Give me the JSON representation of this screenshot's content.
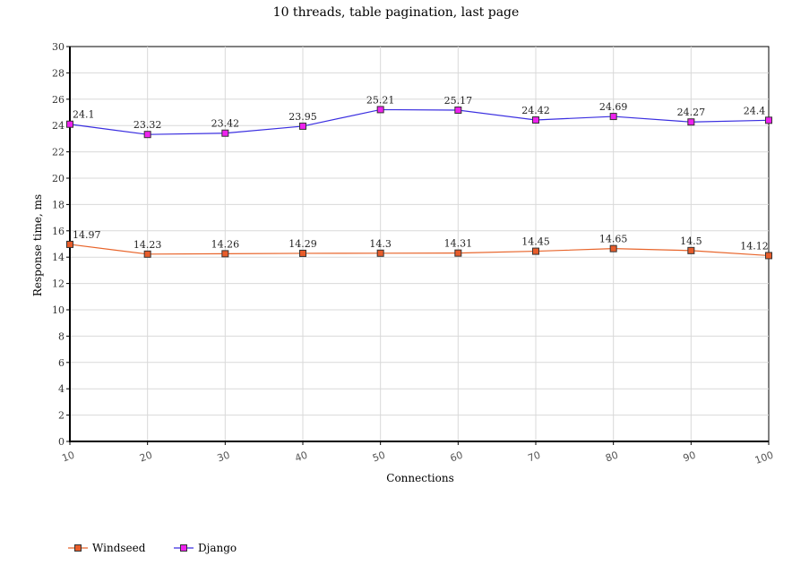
{
  "chart_data": {
    "type": "line",
    "title": "10 threads, table pagination, last page",
    "xlabel": "Connections",
    "ylabel": "Response time, ms",
    "x": [
      10,
      20,
      30,
      40,
      50,
      60,
      70,
      80,
      90,
      100
    ],
    "x_tick_labels": [
      "10",
      "20",
      "30",
      "40",
      "50",
      "60",
      "70",
      "80",
      "90",
      "100"
    ],
    "ylim": [
      0,
      30
    ],
    "y_ticks": [
      "0",
      "2",
      "4",
      "6",
      "8",
      "10",
      "12",
      "14",
      "16",
      "18",
      "20",
      "22",
      "24",
      "26",
      "28",
      "30"
    ],
    "grid": true,
    "legend_position": "bottom-left",
    "series": [
      {
        "name": "Windseed",
        "line_color": "#e8642a",
        "marker_color": "#e85c2a",
        "values": [
          14.97,
          14.23,
          14.26,
          14.29,
          14.3,
          14.31,
          14.45,
          14.65,
          14.5,
          14.12
        ],
        "labels": [
          "14.97",
          "14.23",
          "14.26",
          "14.29",
          "14.3",
          "14.31",
          "14.45",
          "14.65",
          "14.5",
          "14.12"
        ]
      },
      {
        "name": "Django",
        "line_color": "#3a2ee0",
        "marker_color": "#ee22ee",
        "values": [
          24.1,
          23.32,
          23.42,
          23.95,
          25.21,
          25.17,
          24.42,
          24.69,
          24.27,
          24.4
        ],
        "labels": [
          "24.1",
          "23.32",
          "23.42",
          "23.95",
          "25.21",
          "25.17",
          "24.42",
          "24.69",
          "24.27",
          "24.4"
        ]
      }
    ]
  }
}
